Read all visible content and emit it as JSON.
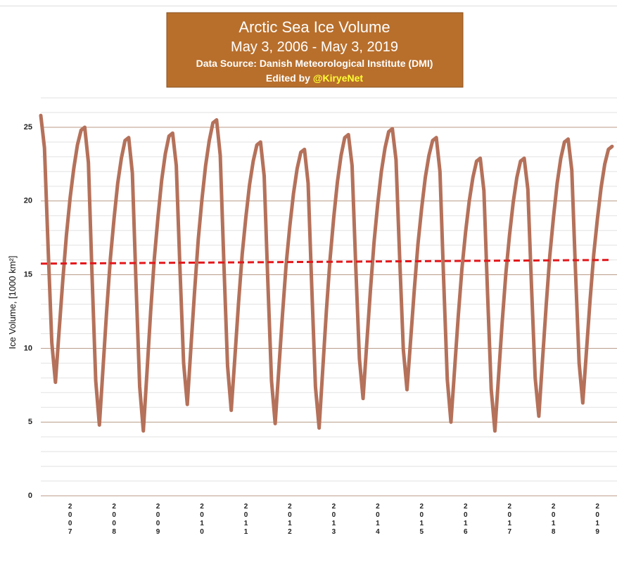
{
  "chart_data": {
    "type": "line",
    "title": "Arctic Sea Ice Volume",
    "subtitle": "May 3, 2006 - May 3, 2019",
    "source": "Data Source: Danish Meteorological Institute (DMI)",
    "credit": "Edited by",
    "credit_handle": "@KiryeNet",
    "y_label": "Ice Volume, [1000 km²]",
    "categories": [
      null,
      null,
      null,
      null,
      null,
      null,
      null,
      null,
      "2007",
      null,
      null,
      null,
      null,
      null,
      null,
      null,
      null,
      null,
      null,
      null,
      "2008",
      null,
      null,
      null,
      null,
      null,
      null,
      null,
      null,
      null,
      null,
      null,
      "2009",
      null,
      null,
      null,
      null,
      null,
      null,
      null,
      null,
      null,
      null,
      null,
      "2010",
      null,
      null,
      null,
      null,
      null,
      null,
      null,
      null,
      null,
      null,
      null,
      "2011",
      null,
      null,
      null,
      null,
      null,
      null,
      null,
      null,
      null,
      null,
      null,
      "2012",
      null,
      null,
      null,
      null,
      null,
      null,
      null,
      null,
      null,
      null,
      null,
      "2013",
      null,
      null,
      null,
      null,
      null,
      null,
      null,
      null,
      null,
      null,
      null,
      "2014",
      null,
      null,
      null,
      null,
      null,
      null,
      null,
      null,
      null,
      null,
      null,
      "2015",
      null,
      null,
      null,
      null,
      null,
      null,
      null,
      null,
      null,
      null,
      null,
      "2016",
      null,
      null,
      null,
      null,
      null,
      null,
      null,
      null,
      null,
      null,
      null,
      "2017",
      null,
      null,
      null,
      null,
      null,
      null,
      null,
      null,
      null,
      null,
      null,
      "2018",
      null,
      null,
      null,
      null,
      null,
      null,
      null,
      null,
      null,
      null,
      null,
      "2019",
      null,
      null,
      null,
      null
    ],
    "series": [
      {
        "color": "#b5715a",
        "values": [
          25.8,
          23.6,
          16.8,
          10.4,
          7.7,
          11.2,
          14.6,
          17.7,
          20.2,
          22.2,
          23.8,
          24.8,
          25.0,
          22.6,
          14.9,
          7.8,
          4.8,
          8.7,
          12.6,
          16.1,
          18.8,
          21.2,
          22.9,
          24.1,
          24.3,
          21.9,
          14.4,
          7.4,
          4.4,
          8.4,
          12.5,
          16.1,
          18.9,
          21.4,
          23.2,
          24.4,
          24.6,
          22.4,
          15.4,
          9.0,
          6.2,
          10.1,
          13.9,
          17.4,
          20.1,
          22.4,
          24.1,
          25.3,
          25.5,
          23.1,
          15.7,
          8.8,
          5.8,
          9.4,
          13.1,
          16.4,
          18.9,
          21.1,
          22.7,
          23.8,
          24.0,
          21.7,
          14.5,
          7.8,
          4.9,
          8.6,
          12.3,
          15.7,
          18.3,
          20.5,
          22.2,
          23.3,
          23.5,
          21.2,
          14.1,
          7.4,
          4.6,
          8.6,
          12.6,
          16.1,
          18.9,
          21.3,
          23.1,
          24.3,
          24.5,
          22.4,
          15.6,
          9.3,
          6.6,
          10.3,
          13.9,
          17.2,
          19.8,
          22.0,
          23.6,
          24.7,
          24.9,
          22.8,
          16.1,
          9.9,
          7.2,
          10.6,
          14.0,
          17.1,
          19.5,
          21.6,
          23.1,
          24.1,
          24.3,
          22.0,
          14.7,
          7.9,
          5.0,
          8.6,
          12.2,
          15.4,
          17.9,
          20.0,
          21.6,
          22.7,
          22.9,
          20.7,
          13.7,
          7.2,
          4.4,
          8.1,
          11.8,
          15.1,
          17.7,
          19.9,
          21.6,
          22.7,
          22.9,
          20.8,
          14.2,
          8.0,
          5.4,
          9.2,
          12.9,
          16.3,
          18.9,
          21.2,
          22.9,
          24.0,
          24.2,
          22.1,
          15.3,
          9.0,
          6.3,
          9.8,
          13.3,
          16.4,
          18.8,
          20.9,
          22.5,
          23.5,
          23.7
        ]
      }
    ],
    "trend": {
      "color": "#e3171b",
      "values": [
        15.75,
        16.0
      ]
    },
    "ylim": [
      0,
      27
    ],
    "yticks": [
      0,
      5,
      10,
      15,
      20,
      25
    ],
    "minor_yticks": [
      1,
      2,
      3,
      4,
      6,
      7,
      8,
      9,
      11,
      12,
      13,
      14,
      16,
      17,
      18,
      19,
      21,
      22,
      23,
      24,
      26,
      27
    ],
    "grid": true
  }
}
